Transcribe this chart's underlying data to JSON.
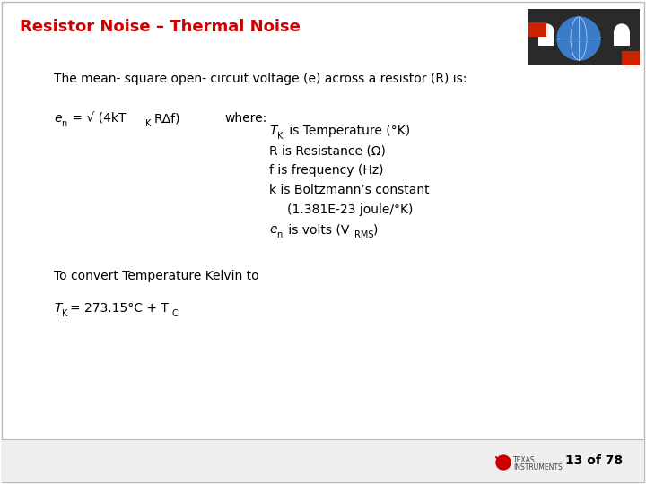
{
  "title": "Resistor Noise – Thermal Noise",
  "title_color": "#CC0000",
  "title_fontsize": 13,
  "bg_color": "#FFFFFF",
  "footer_text": "13 of 78",
  "footer_fontsize": 10,
  "body_fontsize": 10,
  "body_color": "#000000",
  "line1": "The mean- square open- circuit voltage (e) across a resistor (R) is:",
  "formula_main": "e",
  "formula_sub_n": "n",
  "formula_eq": " = √ (4kT",
  "formula_sub_K": "K",
  "formula_end": "RΔf)",
  "where_text": "where:",
  "detail1_main": "T",
  "detail1_sub": "K",
  "detail1_rest": " is Temperature (°K)",
  "detail2": "R is Resistance (Ω)",
  "detail3": "f is frequency (Hz)",
  "detail4": "k is Boltzmann’s constant",
  "detail5": "(1.381E-23 joule/°K)",
  "detail6_main": "e",
  "detail6_sub": "n",
  "detail6_rest": " is volts (V",
  "detail6_sub2": "RMS",
  "detail6_end": ")",
  "convert_text": "To convert Temperature Kelvin to",
  "tk_main": "T",
  "tk_sub": "K",
  "tk_eq": "= 273.15°C + T",
  "tk_sub2": "C"
}
